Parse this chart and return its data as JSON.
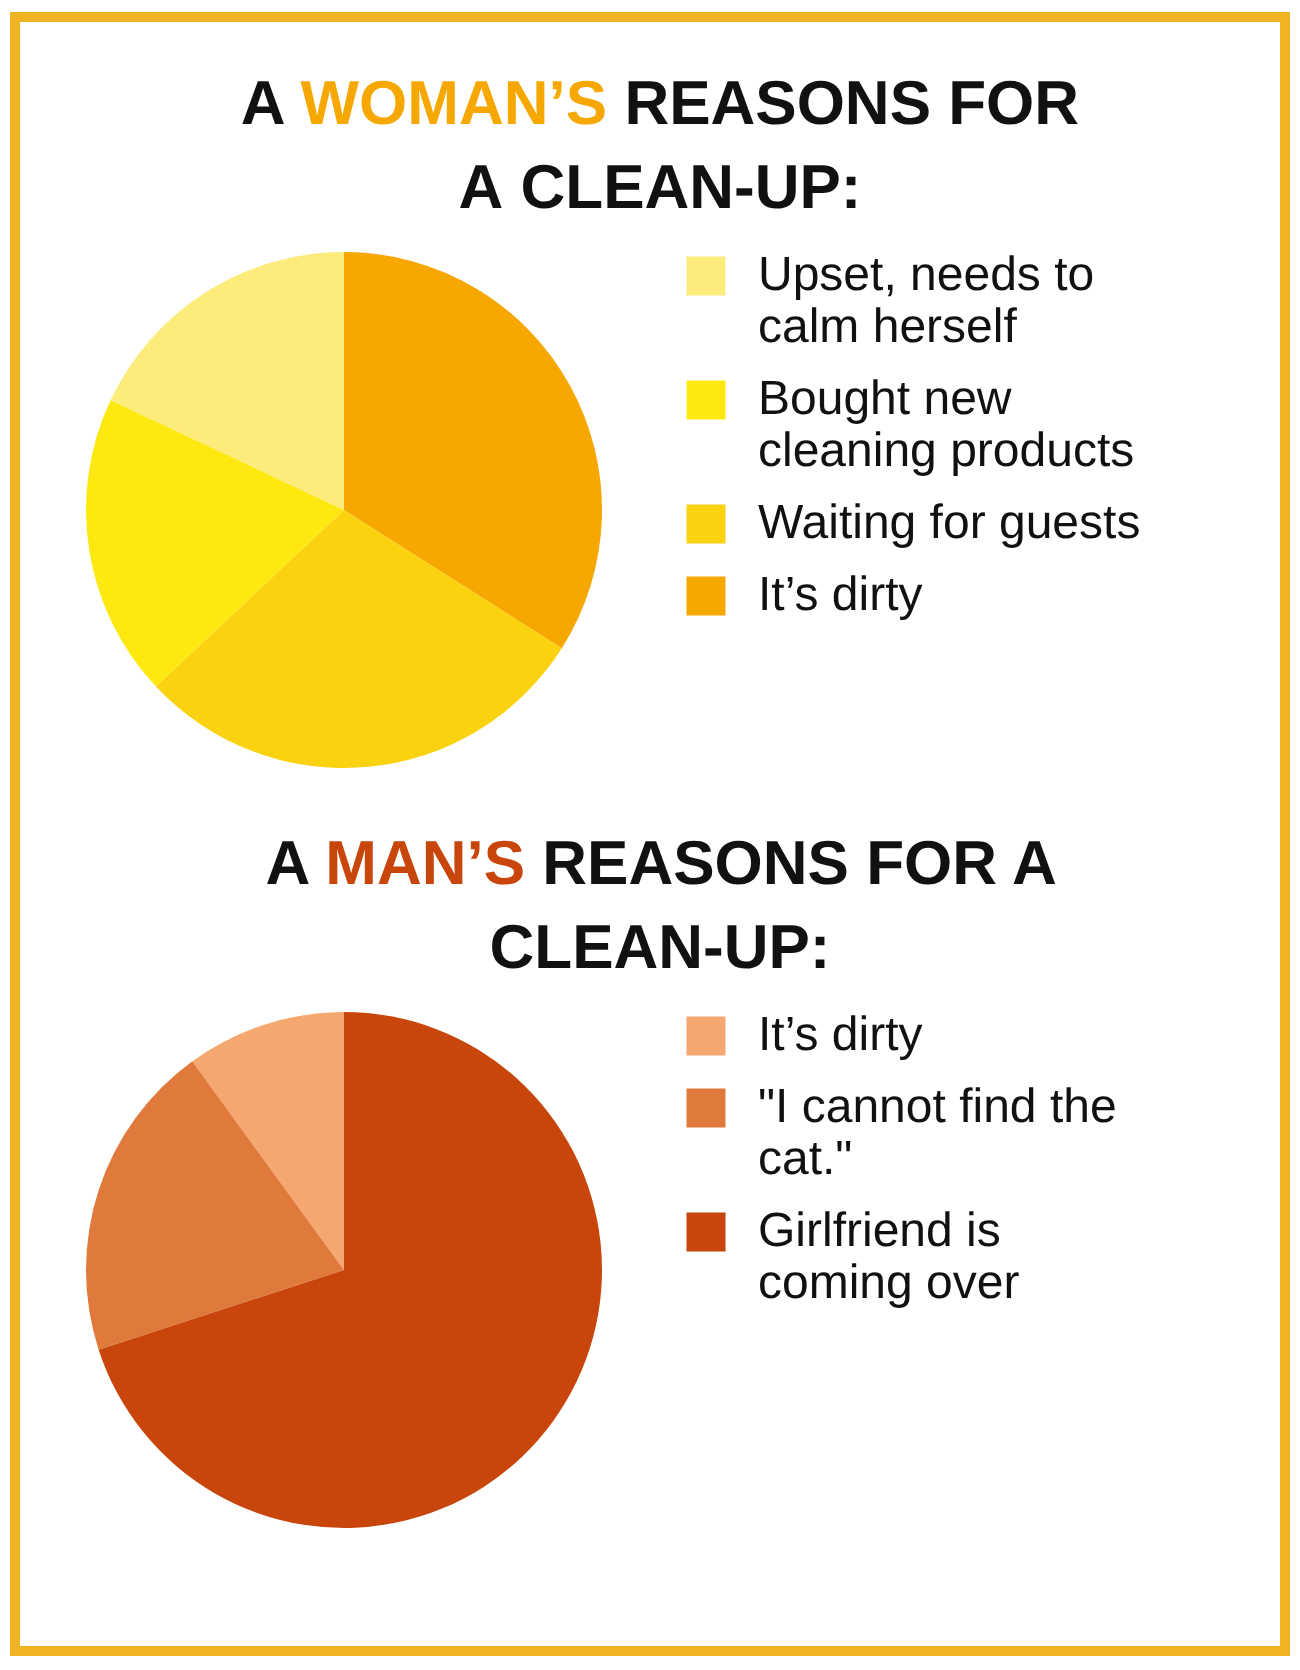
{
  "chart_data": [
    {
      "type": "pie",
      "title": "A WOMAN’S REASONS FOR A CLEAN-UP:",
      "categories": [
        "Upset, needs to calm herself",
        "Bought new cleaning products",
        "Waiting for guests",
        "It’s dirty"
      ],
      "values": [
        18,
        19,
        29,
        34
      ],
      "colors": [
        "#fdec7c",
        "#fde910",
        "#fbd20f",
        "#f6a800"
      ],
      "legend": "right"
    },
    {
      "type": "pie",
      "title": "A MAN’S REASONS FOR A CLEAN-UP:",
      "categories": [
        "It’s dirty",
        "\"I cannot find the cat.\"",
        "Girlfriend is coming over"
      ],
      "values": [
        10,
        20,
        70
      ],
      "colors": [
        "#f4a870",
        "#e07a3c",
        "#c8460c"
      ],
      "legend": "right"
    }
  ]
}
